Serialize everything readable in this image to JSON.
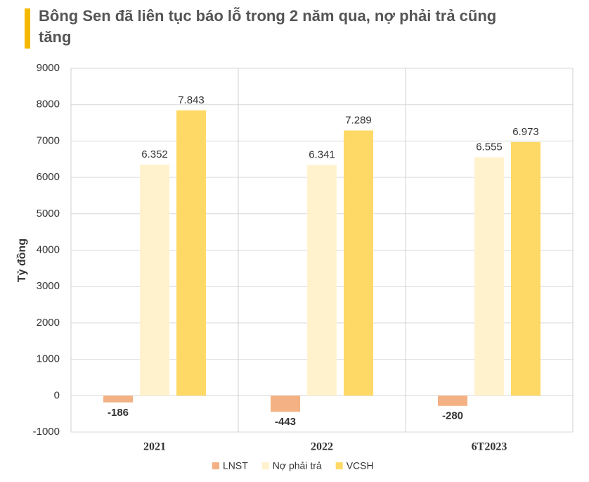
{
  "chart_data": {
    "type": "bar",
    "title": "Bông Sen đã liên tục báo lỗ trong 2 năm qua, nợ phải trả cũng tăng",
    "y_label": "Tỷ đồng",
    "categories": [
      "2021",
      "2022",
      "6T2023"
    ],
    "series": [
      {
        "name": "LNST",
        "color": "#f4b183",
        "values": [
          -186,
          -443,
          -280
        ],
        "value_labels": [
          "-186",
          "-443",
          "-280"
        ]
      },
      {
        "name": "Nợ phải trả",
        "color": "#fff2cc",
        "values": [
          6352,
          6341,
          6555
        ],
        "value_labels": [
          "6.352",
          "6.341",
          "6.555"
        ]
      },
      {
        "name": "VCSH",
        "color": "#ffd966",
        "values": [
          7843,
          7289,
          6973
        ],
        "value_labels": [
          "7.843",
          "7.289",
          "6.973"
        ]
      }
    ],
    "ylim": [
      -1000,
      9000
    ],
    "yticks": [
      -1000,
      0,
      1000,
      2000,
      3000,
      4000,
      5000,
      6000,
      7000,
      8000,
      9000
    ],
    "grid": true,
    "legend": "bottom"
  }
}
